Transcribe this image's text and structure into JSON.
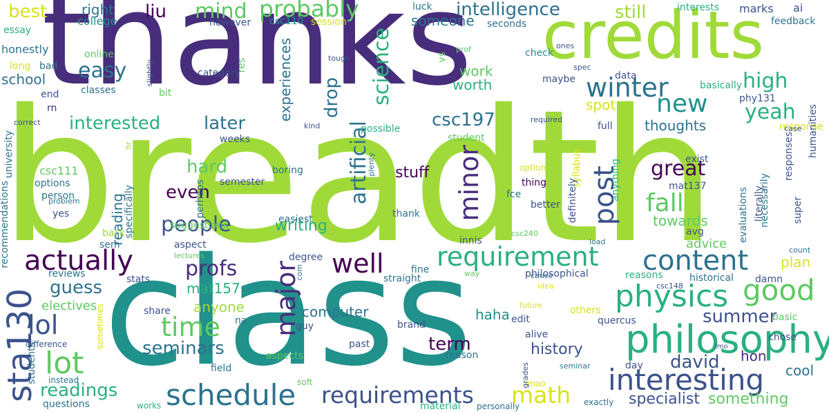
{
  "words": [
    {
      "text": "breadth",
      "color": "#a0da39"
    },
    {
      "text": "class",
      "color": "#21918c"
    },
    {
      "text": "thanks",
      "color": "#472d7b"
    },
    {
      "text": "credits",
      "color": "#a0da39"
    },
    {
      "text": "philosophy",
      "color": "#2ab07f"
    },
    {
      "text": "interesting",
      "color": "#3b528b"
    },
    {
      "text": "schedule",
      "color": "#2c728e"
    },
    {
      "text": "physics",
      "color": "#2ab07f"
    },
    {
      "text": "requirement",
      "color": "#2ab07f"
    },
    {
      "text": "content",
      "color": "#2c728e"
    },
    {
      "text": "actually",
      "color": "#440154"
    },
    {
      "text": "well",
      "color": "#440154"
    },
    {
      "text": "good",
      "color": "#5ec962"
    },
    {
      "text": "major",
      "color": "#472d7b"
    },
    {
      "text": "requirements",
      "color": "#3b528b"
    },
    {
      "text": "math",
      "color": "#d8e219"
    },
    {
      "text": "lot",
      "color": "#5ec962"
    },
    {
      "text": "lol",
      "color": "#3b528b"
    },
    {
      "text": "time",
      "color": "#5ec962"
    },
    {
      "text": "sta130",
      "color": "#3b528b"
    },
    {
      "text": "post",
      "color": "#3b528b"
    },
    {
      "text": "minor",
      "color": "#472d7b"
    },
    {
      "text": "new",
      "color": "#21918c"
    },
    {
      "text": "winter",
      "color": "#2c728e"
    },
    {
      "text": "fall",
      "color": "#5ec962"
    },
    {
      "text": "great",
      "color": "#440154"
    },
    {
      "text": "probably",
      "color": "#5ec962"
    },
    {
      "text": "intelligence",
      "color": "#2c728e"
    },
    {
      "text": "people",
      "color": "#3b528b"
    },
    {
      "text": "profs",
      "color": "#472d7b"
    },
    {
      "text": "easy",
      "color": "#2c728e"
    },
    {
      "text": "science",
      "color": "#2ab07f"
    },
    {
      "text": "artificial",
      "color": "#2c728e"
    },
    {
      "text": "mind",
      "color": "#5ec962"
    },
    {
      "text": "yeah",
      "color": "#2ab07f"
    },
    {
      "text": "high",
      "color": "#2ab07f"
    },
    {
      "text": "even",
      "color": "#440154"
    },
    {
      "text": "hard",
      "color": "#5ec962"
    },
    {
      "text": "later",
      "color": "#2c728e"
    },
    {
      "text": "interested",
      "color": "#2ab07f"
    },
    {
      "text": "csc197",
      "color": "#2c728e"
    },
    {
      "text": "drop",
      "color": "#2c728e"
    },
    {
      "text": "seminars",
      "color": "#2c728e"
    },
    {
      "text": "readings",
      "color": "#2ab07f"
    },
    {
      "text": "guess",
      "color": "#2c728e"
    },
    {
      "text": "david",
      "color": "#3b528b"
    },
    {
      "text": "summer",
      "color": "#3b528b"
    },
    {
      "text": "term",
      "color": "#440154"
    },
    {
      "text": "specialist",
      "color": "#3b528b"
    },
    {
      "text": "something",
      "color": "#5ec962"
    },
    {
      "text": "writing",
      "color": "#2ab07f"
    },
    {
      "text": "stuff",
      "color": "#440154"
    },
    {
      "text": "still",
      "color": "#a0da39"
    },
    {
      "text": "best",
      "color": "#d8e219"
    },
    {
      "text": "liu",
      "color": "#440154"
    },
    {
      "text": "history",
      "color": "#3b528b"
    },
    {
      "text": "computer",
      "color": "#2c728e"
    },
    {
      "text": "plan",
      "color": "#d8e219"
    },
    {
      "text": "advice",
      "color": "#5ec962"
    },
    {
      "text": "thoughts",
      "color": "#2c728e"
    },
    {
      "text": "towards",
      "color": "#5ec962"
    },
    {
      "text": "spot",
      "color": "#d8e219"
    },
    {
      "text": "work",
      "color": "#5ec962"
    },
    {
      "text": "worth",
      "color": "#2ab07f"
    },
    {
      "text": "someone",
      "color": "#2c728e"
    },
    {
      "text": "school",
      "color": "#2c728e"
    },
    {
      "text": "experiences",
      "color": "#2c728e"
    },
    {
      "text": "right",
      "color": "#2c728e"
    },
    {
      "text": "mat157",
      "color": "#2ab07f"
    },
    {
      "text": "anyone",
      "color": "#a0da39"
    },
    {
      "text": "electives",
      "color": "#5ec962"
    },
    {
      "text": "reading",
      "color": "#2c728e"
    },
    {
      "text": "haha",
      "color": "#21918c"
    },
    {
      "text": "hon",
      "color": "#472d7b"
    },
    {
      "text": "cool",
      "color": "#2c728e"
    },
    {
      "text": "honestly",
      "color": "#2c728e"
    },
    {
      "text": "college",
      "color": "#21918c"
    },
    {
      "text": "however",
      "color": "#3b528b"
    },
    {
      "text": "csc110",
      "color": "#21918c"
    },
    {
      "text": "session",
      "color": "#d8e219"
    },
    {
      "text": "luck",
      "color": "#2c728e"
    },
    {
      "text": "seconds",
      "color": "#2c728e"
    },
    {
      "text": "interests",
      "color": "#2ab07f"
    },
    {
      "text": "marks",
      "color": "#3b528b"
    },
    {
      "text": "ai",
      "color": "#3b528b"
    },
    {
      "text": "feedback",
      "color": "#2c728e"
    },
    {
      "text": "essay",
      "color": "#2ab07f"
    },
    {
      "text": "online",
      "color": "#5ec962"
    },
    {
      "text": "long",
      "color": "#d8e219"
    },
    {
      "text": "bad",
      "color": "#2c728e"
    },
    {
      "text": "end",
      "color": "#3b528b"
    },
    {
      "text": "rn",
      "color": "#472d7b"
    },
    {
      "text": "classes",
      "color": "#2c728e"
    },
    {
      "text": "bit",
      "color": "#5ec962"
    },
    {
      "text": "category",
      "color": "#3b528b"
    },
    {
      "text": "check",
      "color": "#21918c"
    },
    {
      "text": "maybe",
      "color": "#3b528b"
    },
    {
      "text": "basically",
      "color": "#2ab07f"
    },
    {
      "text": "data",
      "color": "#3b528b"
    },
    {
      "text": "phy131",
      "color": "#3b528b"
    },
    {
      "text": "possible",
      "color": "#2ab07f"
    },
    {
      "text": "full",
      "color": "#3b528b"
    },
    {
      "text": "response",
      "color": "#d8e219"
    },
    {
      "text": "weeks",
      "color": "#3b528b"
    },
    {
      "text": "boring",
      "color": "#2c728e"
    },
    {
      "text": "semester",
      "color": "#3b528b"
    },
    {
      "text": "options",
      "color": "#2c728e"
    },
    {
      "text": "person",
      "color": "#2c728e"
    },
    {
      "text": "suggestions",
      "color": "#5ec962"
    },
    {
      "text": "thing",
      "color": "#440154"
    },
    {
      "text": "fce",
      "color": "#2c728e"
    },
    {
      "text": "better",
      "color": "#3b528b"
    },
    {
      "text": "mat137",
      "color": "#3b528b"
    },
    {
      "text": "exist",
      "color": "#3b528b"
    },
    {
      "text": "easiest",
      "color": "#2c728e"
    },
    {
      "text": "thank",
      "color": "#2c728e"
    },
    {
      "text": "yes",
      "color": "#3b528b"
    },
    {
      "text": "back",
      "color": "#a0da39"
    },
    {
      "text": "sem",
      "color": "#2c728e"
    },
    {
      "text": "aspect",
      "color": "#3b528b"
    },
    {
      "text": "innis",
      "color": "#3b528b"
    },
    {
      "text": "avg",
      "color": "#3b528b"
    },
    {
      "text": "degree",
      "color": "#3b528b"
    },
    {
      "text": "straight",
      "color": "#2c728e"
    },
    {
      "text": "fine",
      "color": "#2c728e"
    },
    {
      "text": "stats",
      "color": "#3b528b"
    },
    {
      "text": "reviews",
      "color": "#2c728e"
    },
    {
      "text": "philosophical",
      "color": "#3b528b"
    },
    {
      "text": "reasons",
      "color": "#2ab07f"
    },
    {
      "text": "historical",
      "color": "#2c728e"
    },
    {
      "text": "damn",
      "color": "#3b528b"
    },
    {
      "text": "share",
      "color": "#3b528b"
    },
    {
      "text": "others",
      "color": "#d8e219"
    },
    {
      "text": "quercus",
      "color": "#3b528b"
    },
    {
      "text": "basic",
      "color": "#5ec962"
    },
    {
      "text": "chose",
      "color": "#3b528b"
    },
    {
      "text": "na",
      "color": "#2c728e"
    },
    {
      "text": "guy",
      "color": "#3b528b"
    },
    {
      "text": "brand",
      "color": "#3b528b"
    },
    {
      "text": "edit",
      "color": "#3b528b"
    },
    {
      "text": "alive",
      "color": "#3b528b"
    },
    {
      "text": "aspects",
      "color": "#5ec962"
    },
    {
      "text": "field",
      "color": "#2c728e"
    },
    {
      "text": "past",
      "color": "#3b528b"
    },
    {
      "text": "reason",
      "color": "#2c728e"
    },
    {
      "text": "day",
      "color": "#3b528b"
    },
    {
      "text": "questions",
      "color": "#2c728e"
    },
    {
      "text": "material",
      "color": "#2ab07f"
    },
    {
      "text": "exactly",
      "color": "#2c728e"
    },
    {
      "text": "instead",
      "color": "#2c728e"
    },
    {
      "text": "difference",
      "color": "#3b528b"
    },
    {
      "text": "soft",
      "color": "#5ec962"
    },
    {
      "text": "works",
      "color": "#2ab07f"
    },
    {
      "text": "personally",
      "color": "#2c728e"
    },
    {
      "text": "lmao",
      "color": "#d8e219"
    },
    {
      "text": "grades",
      "color": "#3b528b"
    },
    {
      "text": "seminar",
      "color": "#2c728e"
    },
    {
      "text": "future",
      "color": "#d8e219"
    },
    {
      "text": "idea",
      "color": "#d8e219"
    },
    {
      "text": "cause",
      "color": "#2c728e"
    },
    {
      "text": "csc148",
      "color": "#3b528b"
    },
    {
      "text": "imo",
      "color": "#3b528b"
    },
    {
      "text": "count",
      "color": "#2c728e"
    },
    {
      "text": "way",
      "color": "#5ec962"
    },
    {
      "text": "com",
      "color": "#2c728e"
    },
    {
      "text": "lectures",
      "color": "#5ec962"
    },
    {
      "text": "load",
      "color": "#2c728e"
    },
    {
      "text": "csc240",
      "color": "#5ec962"
    },
    {
      "text": "option",
      "color": "#d8e219"
    },
    {
      "text": "student",
      "color": "#5ec962"
    },
    {
      "text": "kind",
      "color": "#3b528b"
    },
    {
      "text": "correct",
      "color": "#3b528b"
    },
    {
      "text": "problem",
      "color": "#2c728e"
    },
    {
      "text": "tough",
      "color": "#3b528b"
    },
    {
      "text": "prof",
      "color": "#5ec962"
    },
    {
      "text": "vs",
      "color": "#5ec962"
    },
    {
      "text": "ones",
      "color": "#3b528b"
    },
    {
      "text": "spec",
      "color": "#3b528b"
    },
    {
      "text": "required",
      "color": "#3b528b"
    },
    {
      "text": "case",
      "color": "#3b528b"
    },
    {
      "text": "br",
      "color": "#a0da39"
    },
    {
      "text": "csc111",
      "color": "#5ec962"
    },
    {
      "text": "university",
      "color": "#2c728e"
    },
    {
      "text": "recommendations",
      "color": "#2c728e"
    },
    {
      "text": "students",
      "color": "#2c728e"
    },
    {
      "text": "sometimes",
      "color": "#d8e219"
    },
    {
      "text": "specifically",
      "color": "#2c728e"
    },
    {
      "text": "slightly",
      "color": "#3b528b"
    },
    {
      "text": "perhaps",
      "color": "#2c728e"
    },
    {
      "text": "res",
      "color": "#5ec962"
    },
    {
      "text": "plenty",
      "color": "#2c728e"
    },
    {
      "text": "syllabus",
      "color": "#d8e219"
    },
    {
      "text": "anything",
      "color": "#2ab07f"
    },
    {
      "text": "definitely",
      "color": "#3b528b"
    },
    {
      "text": "literally",
      "color": "#3b528b"
    },
    {
      "text": "necessarily",
      "color": "#2c728e"
    },
    {
      "text": "evaluations",
      "color": "#2c728e"
    },
    {
      "text": "super",
      "color": "#3b528b"
    },
    {
      "text": "responses",
      "color": "#3b528b"
    },
    {
      "text": "humanities",
      "color": "#3b528b"
    }
  ]
}
